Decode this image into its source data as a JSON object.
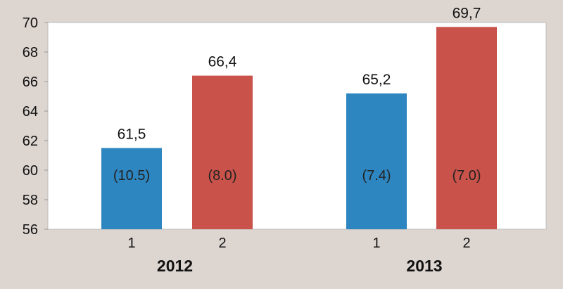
{
  "chart_data": {
    "type": "bar",
    "title": "",
    "xlabel": "",
    "ylabel": "",
    "ylim": [
      56,
      70
    ],
    "yticks": [
      56,
      58,
      60,
      62,
      64,
      66,
      68,
      70
    ],
    "groups": [
      {
        "label": "2012",
        "bars": [
          {
            "category": "1",
            "value": 61.5,
            "value_label": "61,5",
            "inner_label": "(10.5)",
            "color": "#2e86c1"
          },
          {
            "category": "2",
            "value": 66.4,
            "value_label": "66,4",
            "inner_label": "(8.0)",
            "color": "#c9524a"
          }
        ]
      },
      {
        "label": "2013",
        "bars": [
          {
            "category": "1",
            "value": 65.2,
            "value_label": "65,2",
            "inner_label": "(7.4)",
            "color": "#2e86c1"
          },
          {
            "category": "2",
            "value": 69.7,
            "value_label": "69,7",
            "inner_label": "(7.0)",
            "color": "#c9524a"
          }
        ]
      }
    ],
    "grid": false,
    "legend": "none"
  }
}
